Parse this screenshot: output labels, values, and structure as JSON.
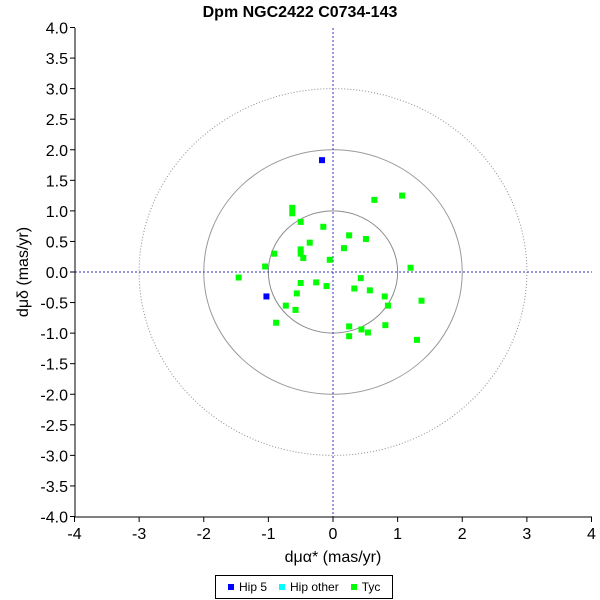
{
  "chart_data": {
    "type": "scatter",
    "title": "Dpm NGC2422  C0734-143",
    "xlabel": "dμα* (mas/yr)",
    "ylabel": "dμδ (mas/yr)",
    "xlim": [
      -4,
      4
    ],
    "ylim": [
      -4,
      4
    ],
    "x_ticks": [
      "-4",
      "-3",
      "-2",
      "-1",
      "0",
      "1",
      "2",
      "3",
      "4"
    ],
    "y_ticks": [
      "4.0",
      "3.5",
      "3.0",
      "2.5",
      "2.0",
      "1.5",
      "1.0",
      "0.5",
      "0.0",
      "-0.5",
      "-1.0",
      "-1.5",
      "-2.0",
      "-2.5",
      "-3.0",
      "-3.5",
      "-4.0"
    ],
    "circle_radii": [
      1,
      2,
      3
    ],
    "series": [
      {
        "name": "Hip 5",
        "color": "#0000ff",
        "points": [
          [
            -0.17,
            1.83
          ],
          [
            -1.03,
            -0.4
          ]
        ]
      },
      {
        "name": "Hip other",
        "color": "#00ffff",
        "points": []
      },
      {
        "name": "Tyc",
        "color": "#00ff00",
        "points": [
          [
            -0.63,
            1.05
          ],
          [
            -0.63,
            0.96
          ],
          [
            -0.5,
            0.82
          ],
          [
            -0.15,
            0.74
          ],
          [
            0.64,
            1.18
          ],
          [
            1.07,
            1.25
          ],
          [
            -0.36,
            0.48
          ],
          [
            -0.5,
            0.37
          ],
          [
            -0.5,
            0.3
          ],
          [
            -0.46,
            0.23
          ],
          [
            0.17,
            0.39
          ],
          [
            0.25,
            0.6
          ],
          [
            0.51,
            0.54
          ],
          [
            -0.05,
            0.2
          ],
          [
            -0.91,
            0.3
          ],
          [
            -1.05,
            0.09
          ],
          [
            -1.46,
            -0.09
          ],
          [
            0.43,
            -0.1
          ],
          [
            0.33,
            -0.27
          ],
          [
            0.57,
            -0.3
          ],
          [
            0.8,
            -0.4
          ],
          [
            0.85,
            -0.55
          ],
          [
            1.37,
            -0.47
          ],
          [
            1.2,
            0.07
          ],
          [
            -0.5,
            -0.18
          ],
          [
            -0.26,
            -0.17
          ],
          [
            -0.1,
            -0.23
          ],
          [
            -0.56,
            -0.35
          ],
          [
            -0.73,
            -0.55
          ],
          [
            -0.58,
            -0.62
          ],
          [
            -0.88,
            -0.83
          ],
          [
            0.25,
            -0.89
          ],
          [
            0.44,
            -0.94
          ],
          [
            0.54,
            -0.99
          ],
          [
            0.81,
            -0.87
          ],
          [
            1.3,
            -1.11
          ],
          [
            0.25,
            -1.05
          ]
        ]
      }
    ],
    "legend_position": "bottom-center",
    "grid": false
  }
}
